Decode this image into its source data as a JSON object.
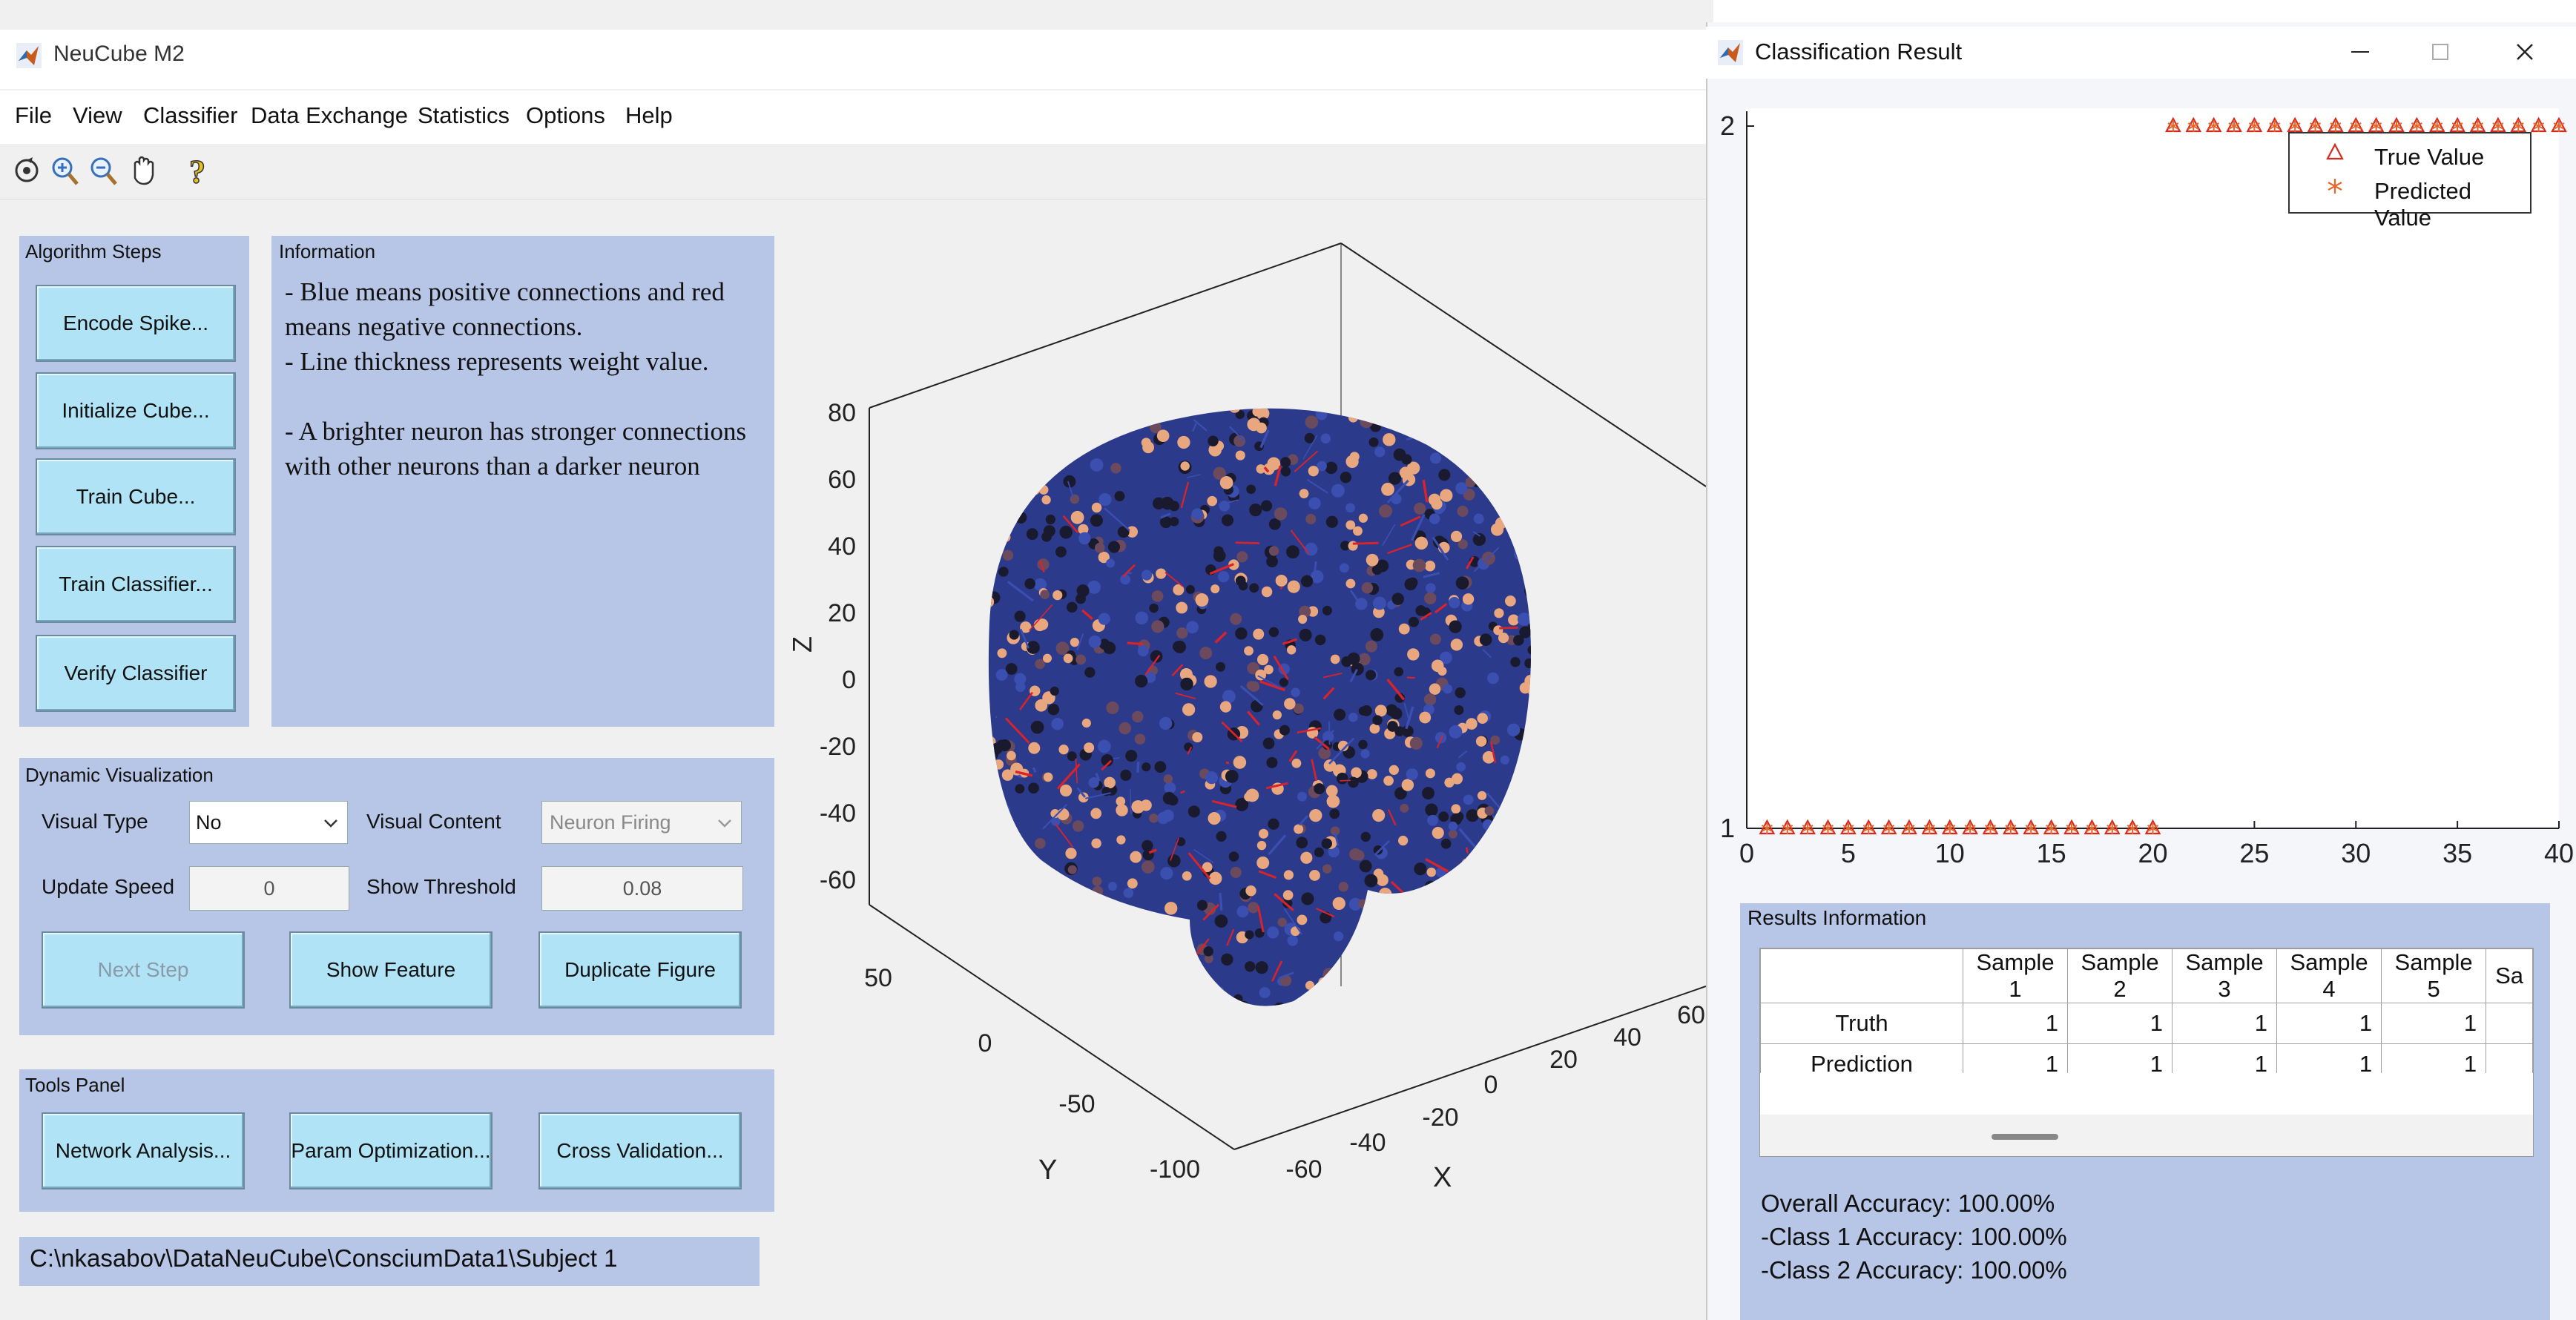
{
  "main_window": {
    "title": "NeuCube M2",
    "menu": [
      "File",
      "View",
      "Classifier",
      "Data Exchange",
      "Statistics",
      "Options",
      "Help"
    ],
    "toolbar_icons": [
      "rotate-icon",
      "zoom-in-icon",
      "zoom-out-icon",
      "pan-hand-icon",
      "help-icon"
    ]
  },
  "algorithm_steps": {
    "title": "Algorithm Steps",
    "buttons": [
      "Encode Spike...",
      "Initialize Cube...",
      "Train Cube...",
      "Train Classifier...",
      "Verify Classifier"
    ]
  },
  "information": {
    "title": "Information",
    "lines": [
      "- Blue means positive connections and red",
      "means negative connections.",
      "- Line thickness represents weight value.",
      "",
      "- A brighter neuron has stronger connections",
      "with other neurons than a darker neuron"
    ]
  },
  "dynamic_visualization": {
    "title": "Dynamic Visualization",
    "visual_type_label": "Visual Type",
    "visual_type_value": "No",
    "visual_content_label": "Visual Content",
    "visual_content_value": "Neuron Firing",
    "update_speed_label": "Update Speed",
    "update_speed_value": "0",
    "show_threshold_label": "Show Threshold",
    "show_threshold_value": "0.08",
    "next_step_label": "Next Step",
    "show_feature_label": "Show Feature",
    "duplicate_figure_label": "Duplicate Figure"
  },
  "tools_panel": {
    "title": "Tools Panel",
    "buttons": [
      "Network Analysis...",
      "Param Optimization...",
      "Cross Validation..."
    ]
  },
  "path": "C:\\nkasabov\\DataNeuCube\\ConsciumData1\\Subject 1",
  "cube_plot": {
    "z_axis_label": "Z",
    "y_axis_label": "Y",
    "x_axis_label": "X",
    "z_ticks": [
      "80",
      "60",
      "40",
      "20",
      "0",
      "-20",
      "-40",
      "-60"
    ],
    "y_ticks": [
      "50",
      "0",
      "-50",
      "-100"
    ],
    "x_ticks": [
      "-60",
      "-40",
      "-20",
      "0",
      "20",
      "40",
      "60"
    ],
    "colors": {
      "positive": "#3a4fb0",
      "negative": "#d8232a",
      "neuron_bright": "#e8a77e",
      "neuron_dark": "#1a1a2e"
    }
  },
  "result_window": {
    "title": "Classification Result",
    "controls": [
      "minimize-icon",
      "maximize-icon",
      "close-icon"
    ],
    "legend": {
      "true_value": "True Value",
      "predicted_value": "Predicted Value"
    },
    "results_info_title": "Results Information",
    "table": {
      "columns": [
        "",
        "Sample 1",
        "Sample 2",
        "Sample 3",
        "Sample 4",
        "Sample 5",
        "Sa"
      ],
      "rows": [
        {
          "label": "Truth",
          "values": [
            "1",
            "1",
            "1",
            "1",
            "1"
          ]
        },
        {
          "label": "Prediction",
          "values": [
            "1",
            "1",
            "1",
            "1",
            "1"
          ]
        }
      ]
    },
    "overall_accuracy": "Overall Accuracy: 100.00%",
    "class1_accuracy": "-Class 1 Accuracy: 100.00%",
    "class2_accuracy": "-Class 2 Accuracy: 100.00%"
  },
  "chart_data": {
    "type": "scatter",
    "xlim": [
      0,
      40
    ],
    "ylim": [
      1,
      2
    ],
    "x_ticks": [
      "0",
      "5",
      "10",
      "15",
      "20",
      "25",
      "30",
      "35",
      "40"
    ],
    "y_ticks": [
      "1",
      "2"
    ],
    "legend_position": "top-right",
    "series": [
      {
        "name": "True Value",
        "marker": "triangle",
        "color": "#d62a1e",
        "x": [
          1,
          2,
          3,
          4,
          5,
          6,
          7,
          8,
          9,
          10,
          11,
          12,
          13,
          14,
          15,
          16,
          17,
          18,
          19,
          20,
          21,
          22,
          23,
          24,
          25,
          26,
          27,
          28,
          29,
          30,
          31,
          32,
          33,
          34,
          35,
          36,
          37,
          38,
          39,
          40
        ],
        "y": [
          1,
          1,
          1,
          1,
          1,
          1,
          1,
          1,
          1,
          1,
          1,
          1,
          1,
          1,
          1,
          1,
          1,
          1,
          1,
          1,
          2,
          2,
          2,
          2,
          2,
          2,
          2,
          2,
          2,
          2,
          2,
          2,
          2,
          2,
          2,
          2,
          2,
          2,
          2,
          2
        ]
      },
      {
        "name": "Predicted Value",
        "marker": "asterisk",
        "color": "#e8662c",
        "x": [
          1,
          2,
          3,
          4,
          5,
          6,
          7,
          8,
          9,
          10,
          11,
          12,
          13,
          14,
          15,
          16,
          17,
          18,
          19,
          20,
          21,
          22,
          23,
          24,
          25,
          26,
          27,
          28,
          29,
          30,
          31,
          32,
          33,
          34,
          35,
          36,
          37,
          38,
          39,
          40
        ],
        "y": [
          1,
          1,
          1,
          1,
          1,
          1,
          1,
          1,
          1,
          1,
          1,
          1,
          1,
          1,
          1,
          1,
          1,
          1,
          1,
          1,
          2,
          2,
          2,
          2,
          2,
          2,
          2,
          2,
          2,
          2,
          2,
          2,
          2,
          2,
          2,
          2,
          2,
          2,
          2,
          2
        ]
      }
    ]
  }
}
